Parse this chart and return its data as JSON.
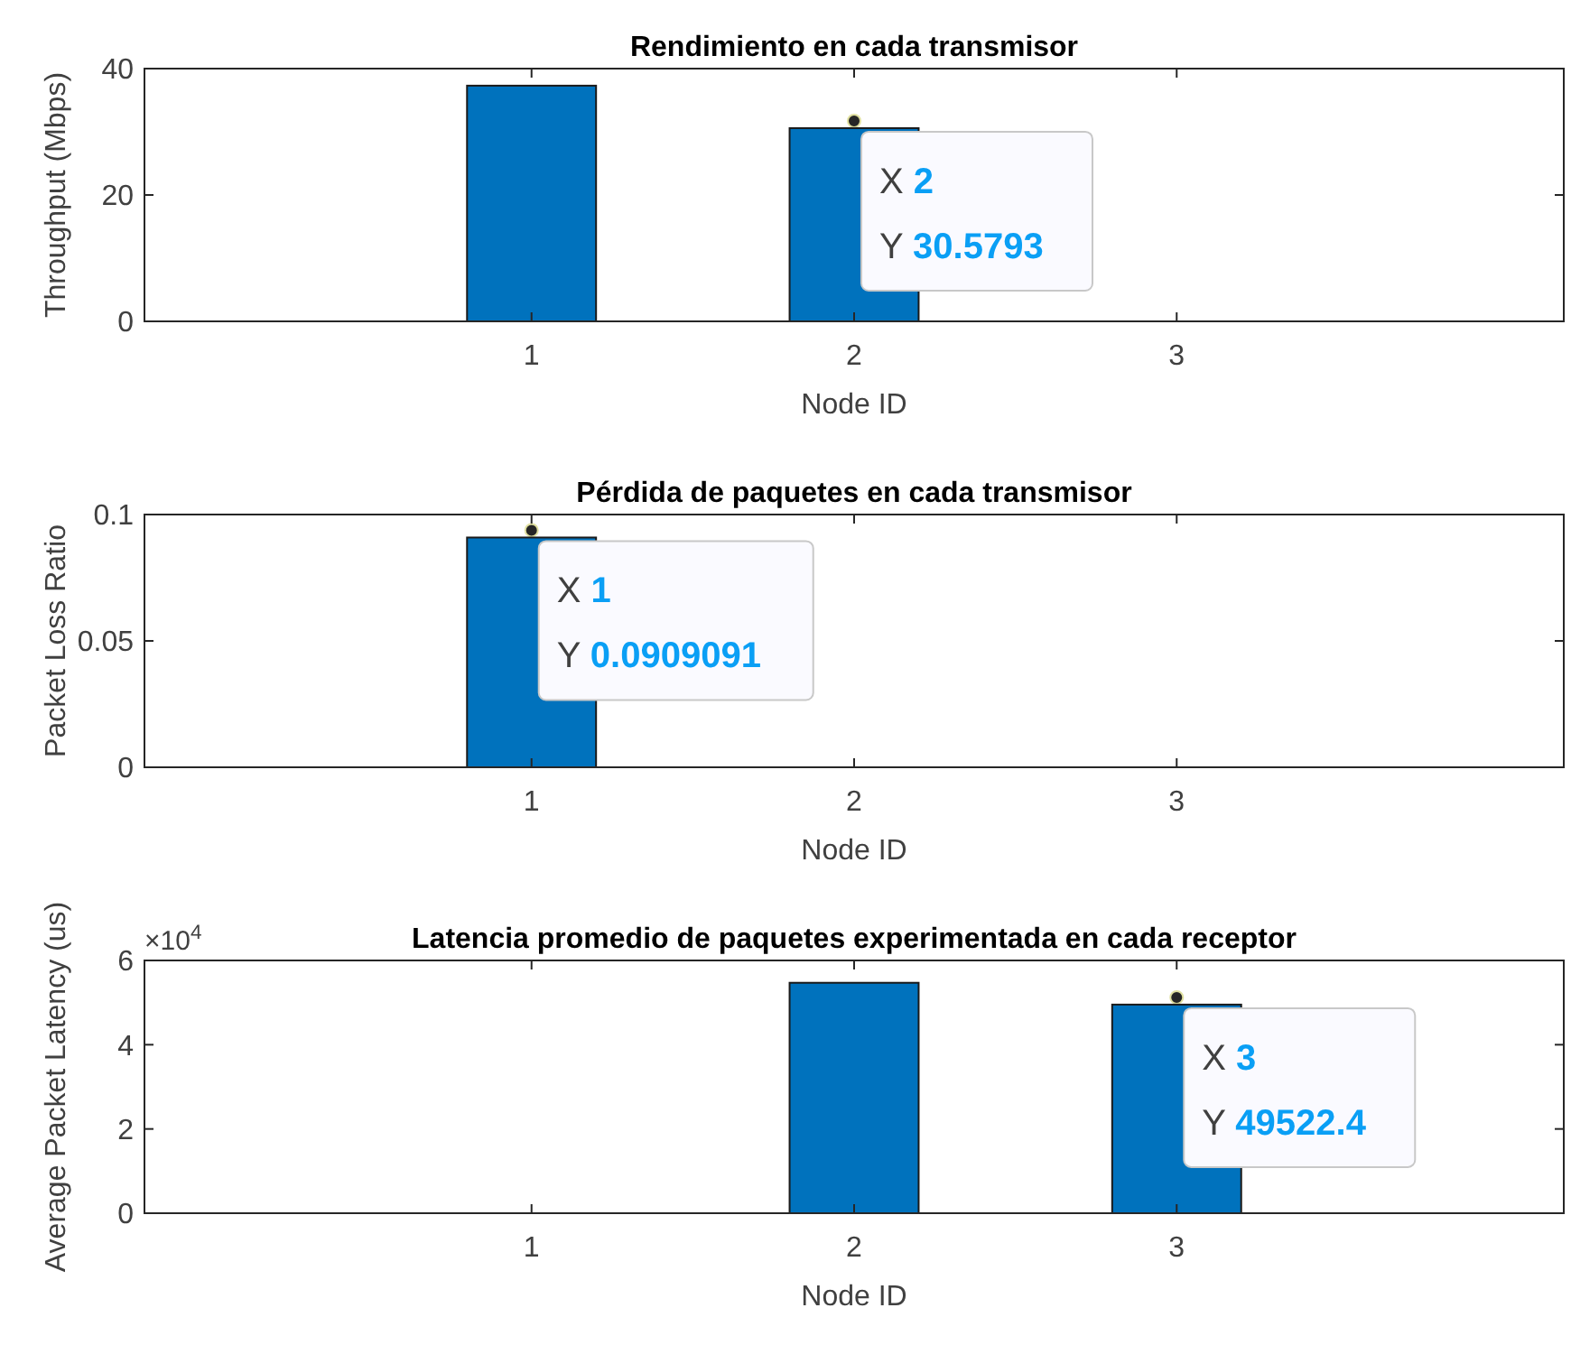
{
  "chart_data": [
    {
      "type": "bar",
      "title": "Rendimiento en cada transmisor",
      "xlabel": "Node ID",
      "ylabel": "Throughput (Mbps)",
      "x": [
        1,
        2,
        3
      ],
      "values": [
        37.3,
        30.5793,
        0
      ],
      "color": "#0072bd",
      "xlim": [
        -0.2,
        4.2
      ],
      "xticks": [
        1,
        2,
        3
      ],
      "ylim": [
        0,
        40
      ],
      "yticks": [
        0,
        20,
        40
      ],
      "grid": false,
      "annotations": [
        {
          "text": "X 2",
          "x": 2,
          "y": 30.5793
        },
        {
          "text": "Y 30.5793",
          "x": 2,
          "y": 30.5793
        }
      ]
    },
    {
      "type": "bar",
      "title": "Pérdida de paquetes en cada transmisor",
      "xlabel": "Node ID",
      "ylabel": "Packet Loss Ratio",
      "x": [
        1,
        2,
        3
      ],
      "values": [
        0.0909091,
        0,
        0
      ],
      "color": "#0072bd",
      "xlim": [
        -0.2,
        4.2
      ],
      "xticks": [
        1,
        2,
        3
      ],
      "ylim": [
        0,
        0.1
      ],
      "yticks": [
        0,
        0.05,
        0.1
      ],
      "grid": false,
      "annotations": [
        {
          "text": "X 1",
          "x": 1,
          "y": 0.0909091
        },
        {
          "text": "Y 0.0909091",
          "x": 1,
          "y": 0.0909091
        }
      ]
    },
    {
      "type": "bar",
      "title": "Latencia promedio de paquetes experimentada en cada receptor",
      "xlabel": "Node ID",
      "ylabel": "Average Packet Latency (us)",
      "x": [
        1,
        2,
        3
      ],
      "values": [
        0,
        5.47,
        4.95224
      ],
      "color": "#0072bd",
      "xlim": [
        -0.2,
        4.2
      ],
      "xticks": [
        1,
        2,
        3
      ],
      "ylim": [
        0,
        6
      ],
      "yticks": [
        0,
        2,
        4,
        6
      ],
      "grid": false,
      "annotations": [
        "×10$^{4}$",
        {
          "text": "X 3",
          "x": 3,
          "y": 4.95224
        },
        {
          "text": "Y 49522.4",
          "x": 3,
          "y": 4.95224
        }
      ]
    }
  ]
}
